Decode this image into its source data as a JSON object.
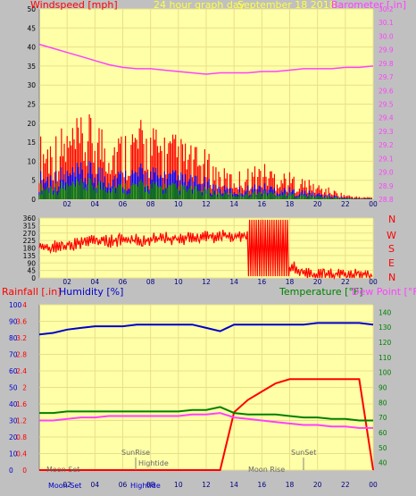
{
  "header": {
    "left_label": "Windspeed [mph]",
    "title": "24 hour graph day",
    "date": "September 18 2018",
    "right_label": "Barometer [.in]"
  },
  "colors": {
    "wind_max": "#ff0000",
    "wind_avg": "#0000ff",
    "wind_low": "#008000",
    "barometer": "#ff40ff",
    "direction": "#ff0000",
    "rain": "#ff0000",
    "humidity": "#0000cc",
    "temperature": "#008000",
    "dewpoint": "#ff40ff",
    "plot_bg": "#ffffa8",
    "grid": "#e8e088"
  },
  "x_ticks": [
    "02",
    "04",
    "06",
    "08",
    "10",
    "12",
    "14",
    "16",
    "18",
    "20",
    "22",
    "00"
  ],
  "lower_header": {
    "rain_label": "Rainfall [.in]",
    "humidity_label": "Humidity [%]",
    "temperature_label": "Temperature [°F]",
    "dewpoint_label": "Dew Point [°F]"
  },
  "direction_labels": [
    "N",
    "W",
    "S",
    "E",
    "N"
  ],
  "astro": {
    "sunrise": "SunRise",
    "sunset": "SunSet",
    "hightide_1": "Hightide",
    "hightide_2": "Hightide",
    "moonrise": "Moon Rise",
    "moonset_1": "Moon Set",
    "moonset_2": "Moon Set"
  },
  "chart_data": [
    {
      "type": "line",
      "title": "24 hour graph day",
      "ylabel": "Windspeed [mph]",
      "ylim": [
        0,
        50
      ],
      "y_ticks": [
        0,
        5,
        10,
        15,
        20,
        25,
        30,
        35,
        40,
        45,
        50
      ],
      "y2label": "Barometer [.in]",
      "y2lim": [
        28.8,
        30.2
      ],
      "y2_ticks": [
        28.8,
        28.9,
        29.0,
        29.1,
        29.2,
        29.3,
        29.4,
        29.5,
        29.6,
        29.7,
        29.8,
        29.9,
        30.0,
        30.1,
        30.2
      ],
      "x_hours": [
        0,
        1,
        2,
        3,
        4,
        5,
        6,
        7,
        8,
        9,
        10,
        11,
        12,
        13,
        14,
        15,
        16,
        17,
        18,
        19,
        20,
        21,
        22,
        23,
        24
      ],
      "series": [
        {
          "name": "Windspeed [mph]",
          "values": [
            12,
            13,
            14,
            15,
            16,
            14,
            13,
            15,
            14,
            13,
            12,
            10,
            9,
            6,
            5,
            6,
            7,
            6,
            5,
            4,
            3,
            2,
            1,
            0.5,
            0.5
          ]
        },
        {
          "name": "Barometer [.in]",
          "values": [
            29.94,
            29.91,
            29.88,
            29.85,
            29.82,
            29.79,
            29.77,
            29.76,
            29.76,
            29.75,
            29.74,
            29.73,
            29.72,
            29.73,
            29.73,
            29.73,
            29.74,
            29.74,
            29.75,
            29.76,
            29.76,
            29.76,
            29.77,
            29.77,
            29.78
          ]
        }
      ]
    },
    {
      "type": "line",
      "ylabel": "Wind direction",
      "ylim": [
        0,
        360
      ],
      "y_ticks": [
        0,
        45,
        90,
        135,
        180,
        225,
        270,
        315,
        360
      ],
      "x_hours": [
        0,
        1,
        2,
        3,
        4,
        5,
        6,
        7,
        8,
        9,
        10,
        11,
        12,
        13,
        14,
        15,
        16,
        17,
        18,
        19,
        20,
        21,
        22,
        23,
        24
      ],
      "series": [
        {
          "name": "Wind direction",
          "values": [
            180,
            185,
            200,
            210,
            225,
            220,
            230,
            225,
            230,
            240,
            235,
            240,
            245,
            250,
            250,
            250,
            200,
            180,
            80,
            20,
            20,
            20,
            20,
            20,
            20
          ]
        }
      ]
    },
    {
      "type": "line",
      "y_ticks_rain": [
        0,
        0.4,
        0.8,
        1.2,
        1.6,
        2.0,
        2.4,
        2.8,
        3.2,
        3.6,
        4.0
      ],
      "y_ticks_humidity": [
        0,
        10,
        20,
        30,
        40,
        50,
        60,
        70,
        80,
        90,
        100
      ],
      "y_ticks_temperature": [
        40,
        50,
        60,
        70,
        80,
        90,
        100,
        110,
        120,
        130,
        140
      ],
      "x_hours": [
        0,
        1,
        2,
        3,
        4,
        5,
        6,
        7,
        8,
        9,
        10,
        11,
        12,
        13,
        14,
        15,
        16,
        17,
        18,
        19,
        20,
        21,
        22,
        23,
        24
      ],
      "series": [
        {
          "name": "Rainfall [.in]",
          "values": [
            0,
            0,
            0,
            0,
            0,
            0,
            0,
            0,
            0,
            0,
            0,
            0,
            0,
            0,
            1.4,
            1.7,
            1.9,
            2.1,
            2.2,
            2.2,
            2.2,
            2.2,
            2.2,
            2.2,
            0
          ]
        },
        {
          "name": "Humidity [%]",
          "values": [
            82,
            83,
            85,
            86,
            87,
            87,
            87,
            88,
            88,
            88,
            88,
            88,
            86,
            84,
            88,
            88,
            88,
            88,
            88,
            88,
            89,
            89,
            89,
            89,
            88
          ]
        },
        {
          "name": "Temperature [°F]",
          "values": [
            73,
            73,
            74,
            74,
            74,
            74,
            74,
            74,
            74,
            74,
            74,
            75,
            75,
            77,
            73,
            72,
            72,
            72,
            71,
            70,
            70,
            69,
            69,
            68,
            68
          ]
        },
        {
          "name": "Dew Point [°F]",
          "values": [
            68,
            68,
            69,
            70,
            70,
            71,
            71,
            71,
            71,
            71,
            71,
            72,
            72,
            73,
            70,
            69,
            68,
            67,
            66,
            65,
            65,
            64,
            64,
            63,
            63
          ]
        }
      ]
    }
  ]
}
